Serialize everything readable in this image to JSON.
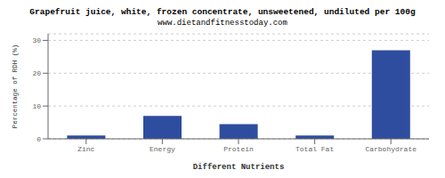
{
  "chart_data": {
    "type": "bar",
    "title": "Grapefruit juice, white, frozen concentrate, unsweetened, undiluted per 100g",
    "subtitle": "www.dietandfitnesstoday.com",
    "categories": [
      "Zinc",
      "Energy",
      "Protein",
      "Total Fat",
      "Carbohydrate"
    ],
    "values": [
      1.0,
      7.0,
      4.5,
      1.0,
      27.0
    ],
    "color": "#2e4d9e",
    "xlabel": "Different Nutrients",
    "ylabel": "Percentage of RDH (%)",
    "ylim": [
      0,
      32
    ],
    "yticks": [
      0,
      10,
      20,
      30
    ],
    "grid": true
  }
}
